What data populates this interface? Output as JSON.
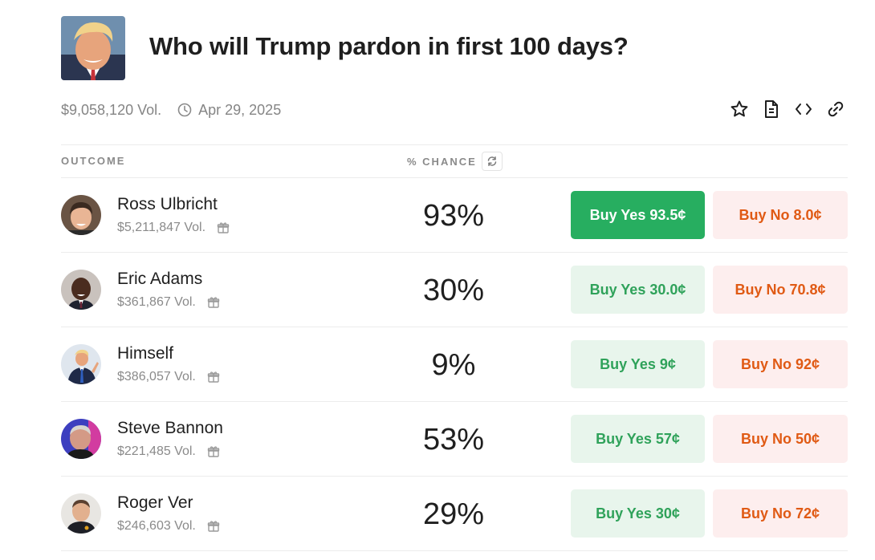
{
  "market": {
    "title": "Who will Trump pardon in first 100 days?",
    "volume": "$9,058,120 Vol.",
    "date": "Apr 29, 2025"
  },
  "table": {
    "col_outcome": "OUTCOME",
    "col_chance": "% CHANCE"
  },
  "outcomes": [
    {
      "name": "Ross Ulbricht",
      "volume": "$5,211,847 Vol.",
      "chance": "93%",
      "yes_label": "Buy Yes 93.5¢",
      "no_label": "Buy No 8.0¢"
    },
    {
      "name": "Eric Adams",
      "volume": "$361,867 Vol.",
      "chance": "30%",
      "yes_label": "Buy Yes 30.0¢",
      "no_label": "Buy No 70.8¢"
    },
    {
      "name": "Himself",
      "volume": "$386,057 Vol.",
      "chance": "9%",
      "yes_label": "Buy Yes 9¢",
      "no_label": "Buy No 92¢"
    },
    {
      "name": "Steve Bannon",
      "volume": "$221,485 Vol.",
      "chance": "53%",
      "yes_label": "Buy Yes 57¢",
      "no_label": "Buy No 50¢"
    },
    {
      "name": "Roger Ver",
      "volume": "$246,603 Vol.",
      "chance": "29%",
      "yes_label": "Buy Yes 30¢",
      "no_label": "Buy No 72¢"
    }
  ],
  "colors": {
    "yes_active": "#27ae60",
    "yes_text": "#2fa25a",
    "yes_bg": "#e8f5ec",
    "no_text": "#e05a14",
    "no_bg": "#fdeeee"
  }
}
